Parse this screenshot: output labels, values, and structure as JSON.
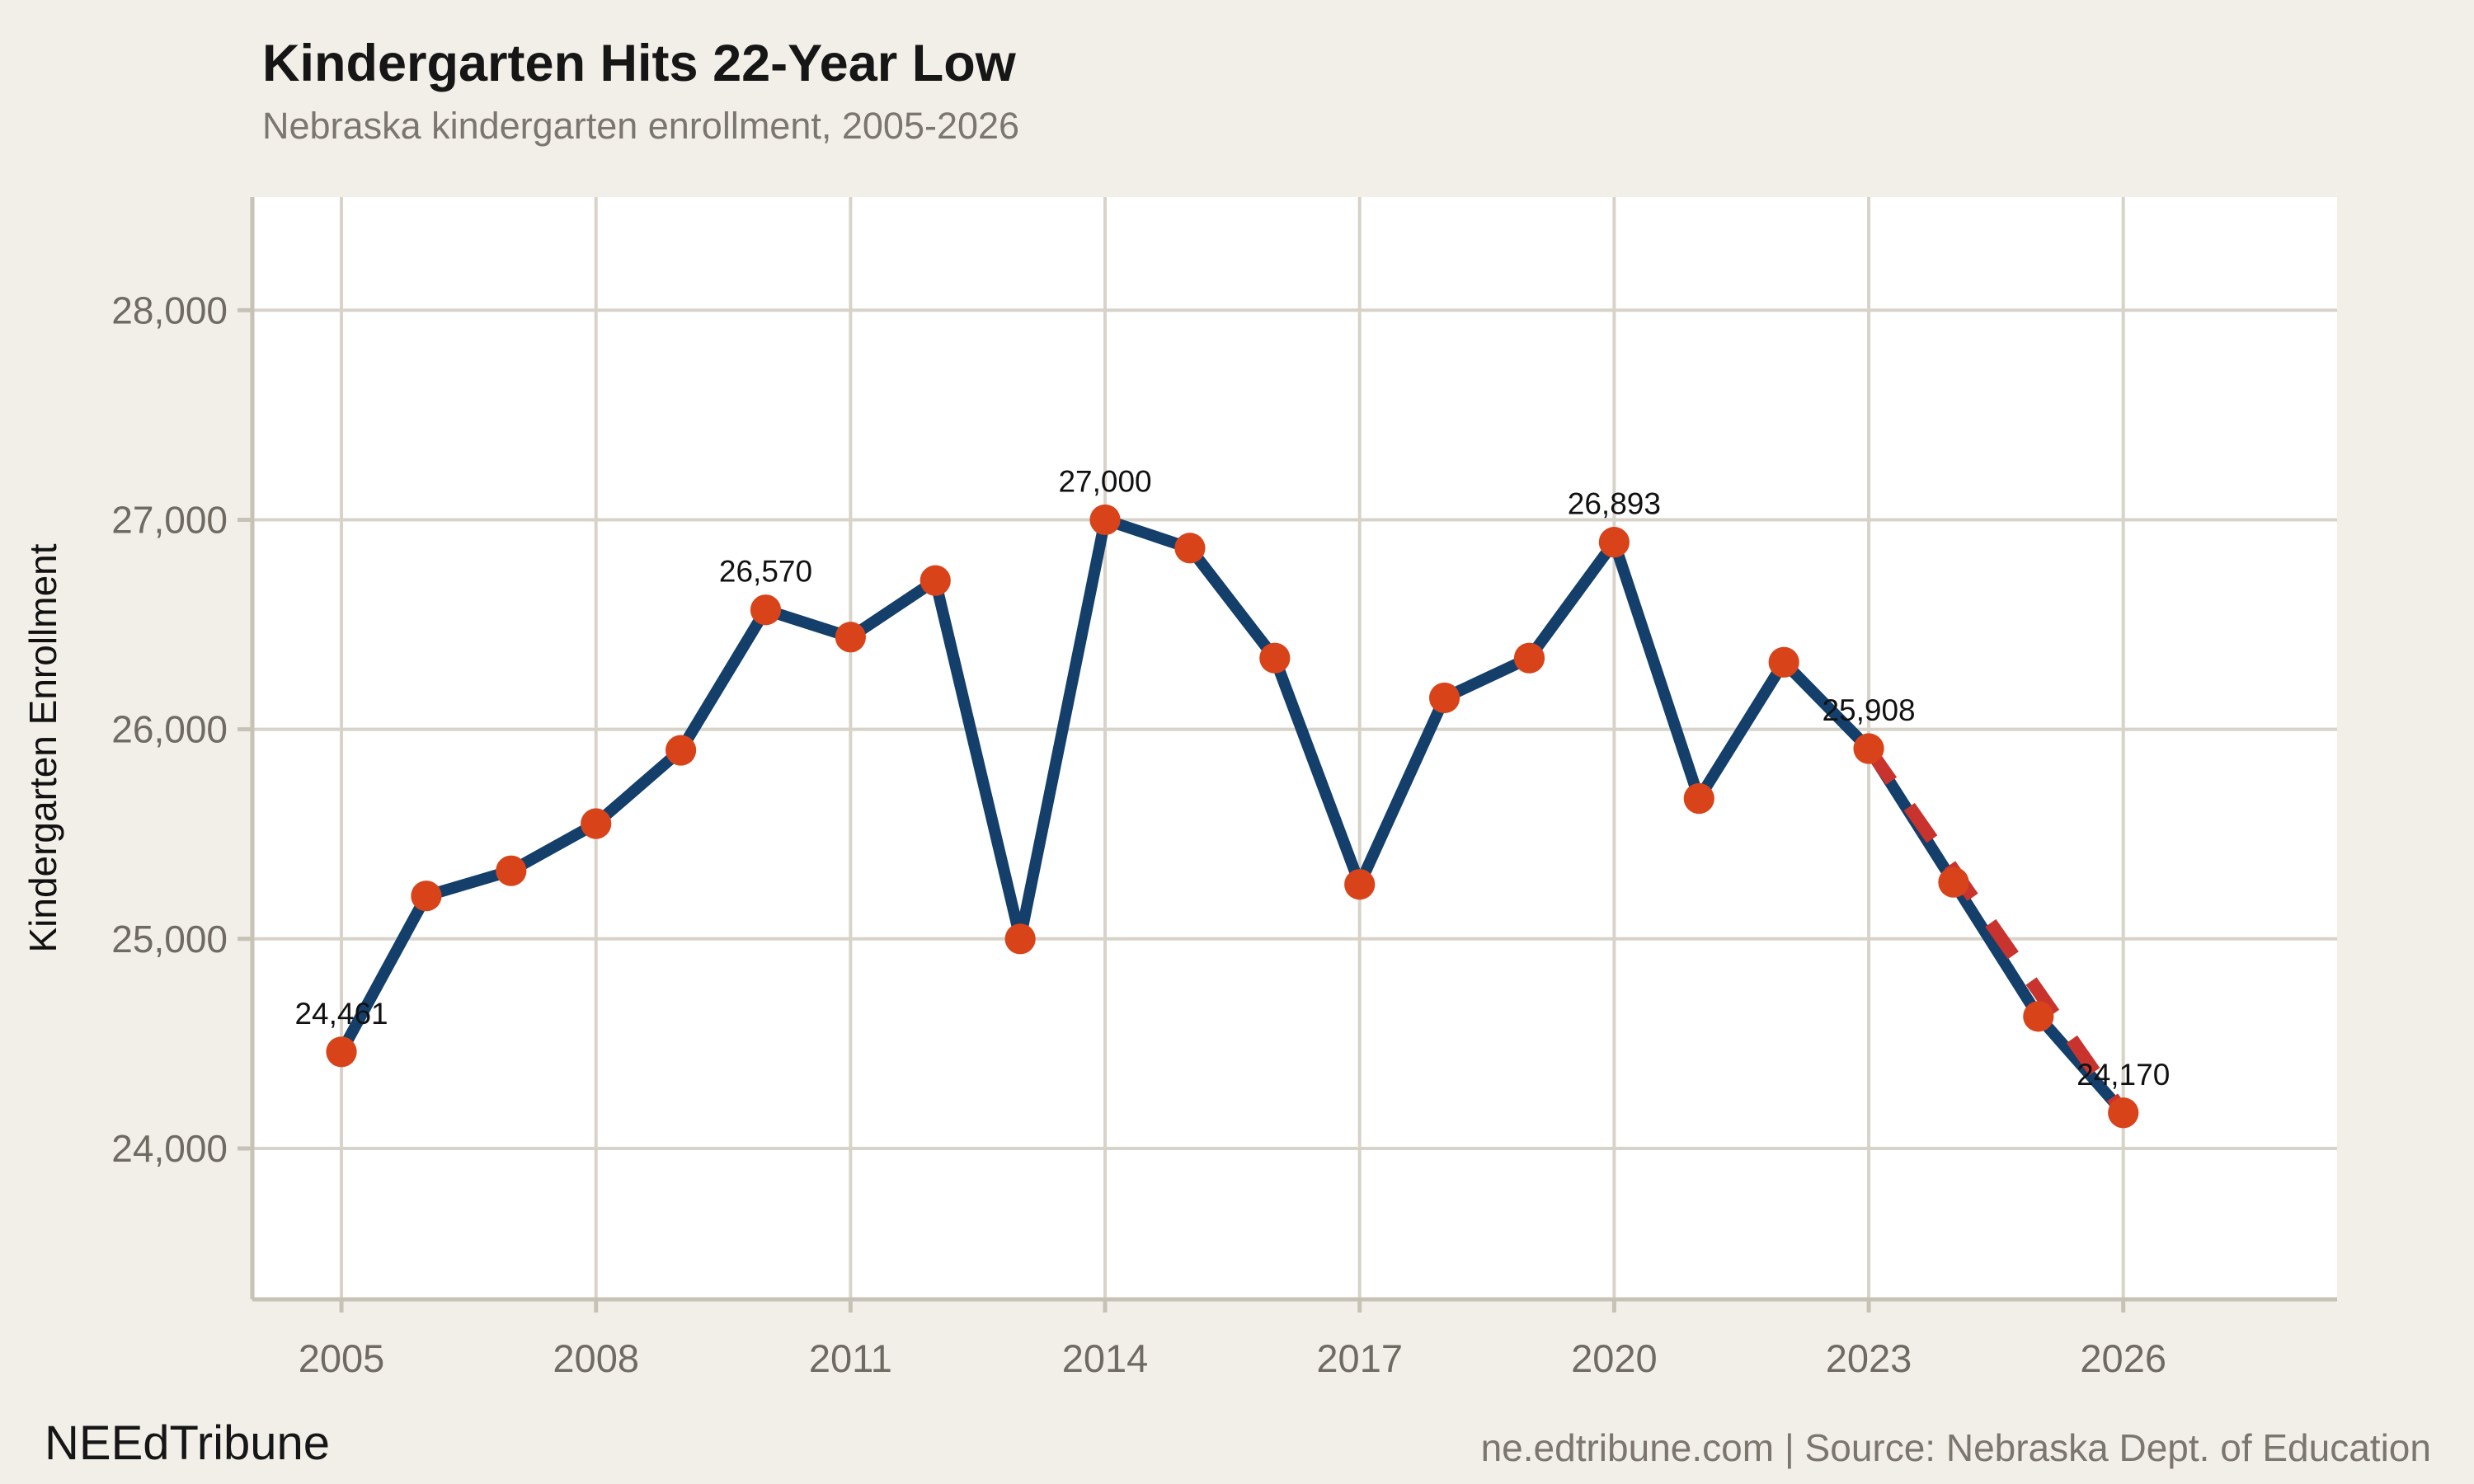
{
  "header": {
    "title": "Kindergarten Hits 22-Year Low",
    "subtitle": "Nebraska kindergarten enrollment, 2005-2026"
  },
  "footer": {
    "brand": "NEEdTribune",
    "credit": "ne.edtribune.com | Source: Nebraska Dept. of Education"
  },
  "chart_data": {
    "type": "line",
    "title": "Kindergarten Hits 22-Year Low",
    "subtitle": "Nebraska kindergarten enrollment, 2005-2026",
    "xlabel": "",
    "ylabel": "Kindergarten Enrollment",
    "x": [
      2005,
      2006,
      2007,
      2008,
      2009,
      2010,
      2011,
      2012,
      2013,
      2014,
      2015,
      2016,
      2017,
      2018,
      2019,
      2020,
      2021,
      2022,
      2023,
      2024,
      2025,
      2026
    ],
    "values": [
      24461,
      25205,
      25325,
      25550,
      25900,
      26570,
      26440,
      26710,
      25000,
      27000,
      26865,
      26340,
      25260,
      26150,
      26340,
      26893,
      25670,
      26320,
      25908,
      25270,
      24630,
      24170
    ],
    "series_name": "Kindergarten enrollment",
    "point_labels": [
      {
        "year": 2005,
        "label": "24,461"
      },
      {
        "year": 2010,
        "label": "26,570"
      },
      {
        "year": 2014,
        "label": "27,000"
      },
      {
        "year": 2020,
        "label": "26,893"
      },
      {
        "year": 2023,
        "label": "25,908"
      },
      {
        "year": 2026,
        "label": "24,170"
      }
    ],
    "projection": {
      "from_year": 2023,
      "to_year": 2026,
      "style": "dashed"
    },
    "x_ticks": [
      2005,
      2008,
      2011,
      2014,
      2017,
      2020,
      2023,
      2026
    ],
    "y_ticks": [
      {
        "value": 24000,
        "label": "24,000"
      },
      {
        "value": 25000,
        "label": "25,000"
      },
      {
        "value": 26000,
        "label": "26,000"
      },
      {
        "value": 27000,
        "label": "27,000"
      },
      {
        "value": 28000,
        "label": "28,000"
      }
    ],
    "xlim": [
      2003.95,
      2028.52
    ],
    "ylim": [
      23280,
      28540
    ],
    "grid": true,
    "legend": "none",
    "colors": {
      "page_bg": "#F2EFE9",
      "plot_bg": "#FFFFFF",
      "grid": "#D8D3C9",
      "axis": "#C7C2B6",
      "line": "#143F6B",
      "point": "#D8431A",
      "projection": "#C8342D",
      "title_text": "#161616",
      "muted_text": "#7B766E",
      "tick_text": "#6F6B62",
      "label_text": "#111111"
    }
  }
}
